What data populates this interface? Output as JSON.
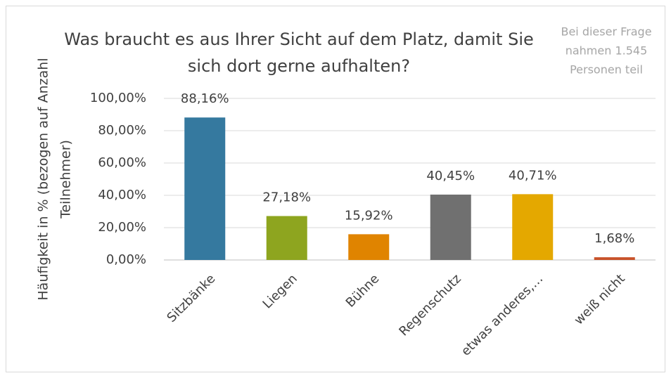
{
  "chart_data": {
    "type": "bar",
    "title": [
      "Was braucht es aus Ihrer Sicht auf dem Platz, damit Sie",
      "sich dort gerne aufhalten?"
    ],
    "annotation": [
      "Bei dieser Frage",
      "nahmen 1.545",
      "Personen teil"
    ],
    "y_label": [
      "Häufigkeit in % (bezogen auf Anzahl",
      "Teilnehmer)"
    ],
    "categories": [
      "Sitzbänke",
      "Liegen",
      "Bühne",
      "Regenschutz",
      "etwas anderes,…",
      "weiß nicht"
    ],
    "values": [
      88.16,
      27.18,
      15.92,
      40.45,
      40.71,
      1.68
    ],
    "value_labels": [
      "88,16%",
      "27,18%",
      "15,92%",
      "40,45%",
      "40,71%",
      "1,68%"
    ],
    "colors": [
      "#35799f",
      "#8ea51f",
      "#e08400",
      "#707070",
      "#e4a800",
      "#c8522a"
    ],
    "ylim": [
      0,
      100
    ],
    "yticks": [
      {
        "value": 0,
        "label": "0,00%"
      },
      {
        "value": 20,
        "label": "20,00%"
      },
      {
        "value": 40,
        "label": "40,00%"
      },
      {
        "value": 60,
        "label": "60,00%"
      },
      {
        "value": 80,
        "label": "80,00%"
      },
      {
        "value": 100,
        "label": "100,00%"
      }
    ],
    "grid": true
  }
}
